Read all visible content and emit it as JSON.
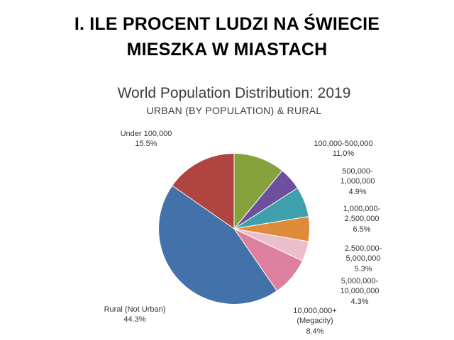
{
  "slide": {
    "heading_line1": "I. ILE PROCENT LUDZI NA ŚWIECIE",
    "heading_line2": "MIESZKA W MIASTACH"
  },
  "chart_data": {
    "type": "pie",
    "title": "World Population Distribution: 2019",
    "subtitle": "URBAN (BY POPULATION) & RURAL",
    "legend_position": "outside-labels",
    "start_angle_deg": -55.8,
    "slices": [
      {
        "label": "Under 100,000",
        "value": 15.5,
        "color": "#b04441",
        "label_lines": [
          "Under 100,000",
          "15.5%"
        ]
      },
      {
        "label": "100,000-500,000",
        "value": 11.0,
        "color": "#85a23c",
        "label_lines": [
          "100,000-500,000",
          "11.0%"
        ]
      },
      {
        "label": "500,000-1,000,000",
        "value": 4.9,
        "color": "#6d4f9e",
        "label_lines": [
          "500,000-",
          "1,000,000",
          "4.9%"
        ]
      },
      {
        "label": "1,000,000-2,500,000",
        "value": 6.5,
        "color": "#3fa0ad",
        "label_lines": [
          "1,000,000-",
          "2,500,000",
          "6.5%"
        ]
      },
      {
        "label": "2,500,000-5,000,000",
        "value": 5.3,
        "color": "#de8c3c",
        "label_lines": [
          "2,500,000-",
          "5,000,000",
          "5.3%"
        ]
      },
      {
        "label": "5,000,000-10,000,000",
        "value": 4.3,
        "color": "#eabfcb",
        "label_lines": [
          "5,000,000-",
          "10,000,000",
          "4.3%"
        ]
      },
      {
        "label": "10,000,000+ (Megacity)",
        "value": 8.4,
        "color": "#dd7f9f",
        "label_lines": [
          "10,000,000+",
          "(Megacity)",
          "8.4%"
        ]
      },
      {
        "label": "Rural (Not Urban)",
        "value": 44.3,
        "color": "#4371a9",
        "label_lines": [
          "Rural (Not Urban)",
          "44.3%"
        ]
      }
    ]
  }
}
